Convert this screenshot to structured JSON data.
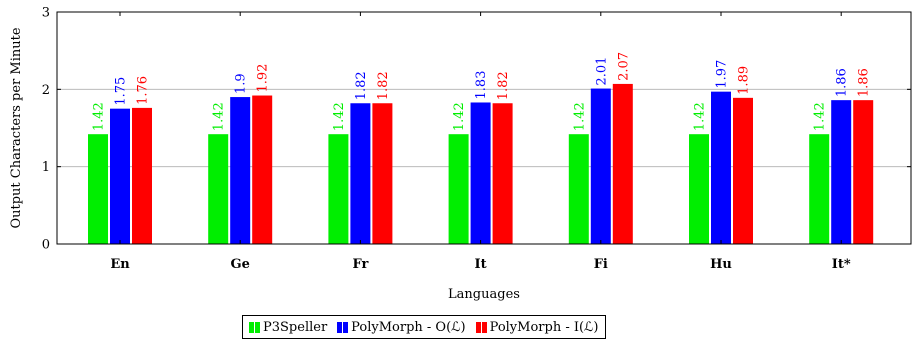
{
  "chart_data": {
    "type": "bar",
    "title": "",
    "xlabel": "Languages",
    "ylabel": "Output Characters per Minute",
    "ylim": [
      0,
      3
    ],
    "yticks": [
      "0",
      "1",
      "2",
      "3"
    ],
    "categories": [
      "En",
      "Ge",
      "Fr",
      "It",
      "Fi",
      "Hu",
      "It*"
    ],
    "series": [
      {
        "name": "P3Speller",
        "color": "#00ee00",
        "values": [
          1.42,
          1.42,
          1.42,
          1.42,
          1.42,
          1.42,
          1.42
        ]
      },
      {
        "name": "PolyMorph - O(ℒ)",
        "color": "#0000ff",
        "values": [
          1.75,
          1.9,
          1.82,
          1.83,
          2.01,
          1.97,
          1.86
        ]
      },
      {
        "name": "PolyMorph - I(ℒ)",
        "color": "#ff0000",
        "values": [
          1.76,
          1.92,
          1.82,
          1.82,
          2.07,
          1.89,
          1.86
        ]
      }
    ],
    "legend_position": "bottom-center",
    "grid": "horizontal"
  }
}
